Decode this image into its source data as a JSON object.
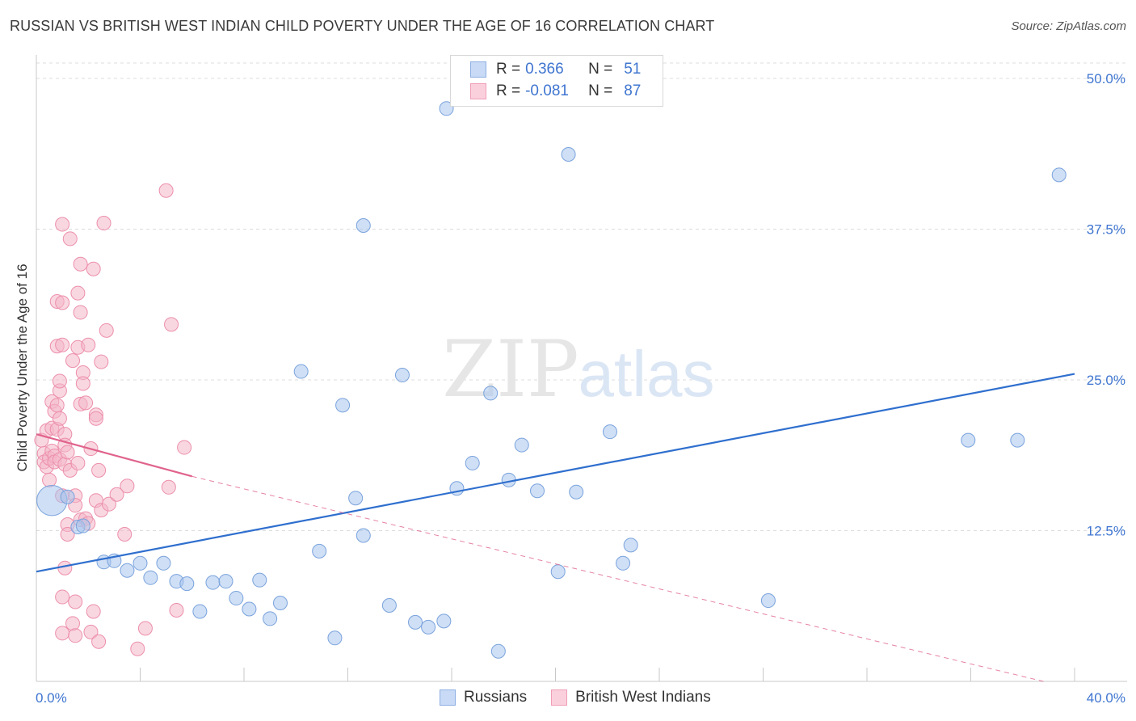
{
  "title": "RUSSIAN VS BRITISH WEST INDIAN CHILD POVERTY UNDER THE AGE OF 16 CORRELATION CHART",
  "source": "Source: ZipAtlas.com",
  "watermark": "ZIPatlas",
  "correlation": {
    "r_label": "R =",
    "n_label": "N =",
    "rows": [
      {
        "name": "Russians",
        "r": "0.366",
        "n": "51",
        "color": "#a8c4ec"
      },
      {
        "name": "British West Indians",
        "r": "-0.081",
        "n": "87",
        "color": "#f4b6c8"
      }
    ]
  },
  "colors": {
    "blue_fill": "#a8c4ec",
    "blue_stroke": "#7aa3dd",
    "blue_line": "#2f6fce",
    "pink_fill": "#f4b6c8",
    "pink_stroke": "#ec8fab",
    "pink_line": "#e0638c",
    "tick_text": "#3f75d0",
    "grid": "#dcdcdc"
  },
  "chart_data": {
    "type": "scatter",
    "title": "RUSSIAN VS BRITISH WEST INDIAN CHILD POVERTY UNDER THE AGE OF 16 CORRELATION CHART",
    "xlabel": "",
    "ylabel": "Child Poverty Under the Age of 16",
    "xlim": [
      0,
      40
    ],
    "ylim": [
      0,
      50
    ],
    "x_tick_labels": [
      "0.0%",
      "40.0%"
    ],
    "y_ticks": [
      12.5,
      25.0,
      37.5,
      50.0
    ],
    "y_tick_labels": [
      "12.5%",
      "25.0%",
      "37.5%",
      "50.0%"
    ],
    "grid": true,
    "legend_position": "bottom",
    "series": [
      {
        "name": "Russians",
        "color": "#a8c4ec",
        "trend": {
          "x": [
            0,
            40
          ],
          "y": [
            9.1,
            25.5
          ],
          "style": "solid"
        },
        "points": [
          [
            0.6,
            15.0,
            2.2
          ],
          [
            1.2,
            15.3,
            1
          ],
          [
            1.6,
            12.8,
            1
          ],
          [
            1.8,
            12.9,
            1
          ],
          [
            2.6,
            9.9,
            1
          ],
          [
            3.0,
            10.0,
            1
          ],
          [
            3.5,
            9.2,
            1
          ],
          [
            4.0,
            9.8,
            1
          ],
          [
            4.4,
            8.6,
            1
          ],
          [
            4.9,
            9.8,
            1
          ],
          [
            5.4,
            8.3,
            1
          ],
          [
            5.8,
            8.1,
            1
          ],
          [
            6.3,
            5.8,
            1
          ],
          [
            6.8,
            8.2,
            1
          ],
          [
            7.3,
            8.3,
            1
          ],
          [
            7.7,
            6.9,
            1
          ],
          [
            8.2,
            6.0,
            1
          ],
          [
            8.6,
            8.4,
            1
          ],
          [
            9.0,
            5.2,
            1
          ],
          [
            9.4,
            6.5,
            1
          ],
          [
            10.2,
            25.7,
            1
          ],
          [
            10.9,
            10.8,
            1
          ],
          [
            11.5,
            3.6,
            1
          ],
          [
            11.8,
            22.9,
            1
          ],
          [
            12.3,
            15.2,
            1
          ],
          [
            12.6,
            12.1,
            1
          ],
          [
            12.6,
            37.8,
            1
          ],
          [
            13.6,
            6.3,
            1
          ],
          [
            14.1,
            25.4,
            1
          ],
          [
            14.6,
            4.9,
            1
          ],
          [
            15.1,
            4.5,
            1
          ],
          [
            15.7,
            5.0,
            1
          ],
          [
            15.8,
            47.5,
            1
          ],
          [
            16.2,
            16.0,
            1
          ],
          [
            16.8,
            18.1,
            1
          ],
          [
            17.5,
            23.9,
            1
          ],
          [
            17.8,
            2.5,
            1
          ],
          [
            18.2,
            16.7,
            1
          ],
          [
            18.7,
            19.6,
            1
          ],
          [
            19.3,
            15.8,
            1
          ],
          [
            20.1,
            9.1,
            1
          ],
          [
            20.5,
            43.7,
            1
          ],
          [
            20.8,
            15.7,
            1
          ],
          [
            22.1,
            20.7,
            1
          ],
          [
            22.6,
            9.8,
            1
          ],
          [
            22.9,
            11.3,
            1
          ],
          [
            28.2,
            6.7,
            1
          ],
          [
            35.9,
            20.0,
            1
          ],
          [
            37.8,
            20.0,
            1
          ],
          [
            39.4,
            42.0,
            1
          ]
        ]
      },
      {
        "name": "British West Indians",
        "color": "#f4b6c8",
        "trend": {
          "x": [
            0,
            6.0
          ],
          "y": [
            20.5,
            17.0
          ],
          "style": "solid",
          "extended_x": [
            6.0,
            38.8
          ],
          "extended_y": [
            17.0,
            0.0
          ],
          "extended_style": "dashed"
        },
        "points": [
          [
            0.2,
            20.0,
            1
          ],
          [
            0.3,
            18.9,
            1
          ],
          [
            0.3,
            18.2,
            1
          ],
          [
            0.4,
            20.8,
            1
          ],
          [
            0.4,
            17.8,
            1
          ],
          [
            0.5,
            16.7,
            1
          ],
          [
            0.5,
            18.5,
            1
          ],
          [
            0.6,
            19.1,
            1
          ],
          [
            0.6,
            21.0,
            1
          ],
          [
            0.6,
            23.2,
            1
          ],
          [
            0.7,
            22.4,
            1
          ],
          [
            0.7,
            18.7,
            1
          ],
          [
            0.7,
            18.2,
            1
          ],
          [
            0.8,
            20.9,
            1
          ],
          [
            0.8,
            22.9,
            1
          ],
          [
            0.8,
            27.8,
            1
          ],
          [
            0.8,
            31.5,
            1
          ],
          [
            0.9,
            24.1,
            1
          ],
          [
            0.9,
            24.9,
            1
          ],
          [
            0.9,
            21.8,
            1
          ],
          [
            0.9,
            18.4,
            1
          ],
          [
            1.0,
            37.9,
            1
          ],
          [
            1.0,
            31.4,
            1
          ],
          [
            1.0,
            27.9,
            1
          ],
          [
            1.0,
            15.4,
            1
          ],
          [
            1.0,
            7.0,
            1
          ],
          [
            1.0,
            4.0,
            1
          ],
          [
            1.1,
            20.5,
            1
          ],
          [
            1.1,
            19.6,
            1
          ],
          [
            1.1,
            18.0,
            1
          ],
          [
            1.2,
            13.0,
            1
          ],
          [
            1.2,
            12.2,
            1
          ],
          [
            1.1,
            9.4,
            1
          ],
          [
            1.2,
            19.0,
            1
          ],
          [
            1.3,
            17.5,
            1
          ],
          [
            1.3,
            36.7,
            1
          ],
          [
            1.4,
            26.6,
            1
          ],
          [
            1.4,
            4.8,
            1
          ],
          [
            1.5,
            3.8,
            1
          ],
          [
            1.5,
            6.6,
            1
          ],
          [
            1.5,
            15.4,
            1
          ],
          [
            1.5,
            14.6,
            1
          ],
          [
            1.6,
            18.1,
            1
          ],
          [
            1.6,
            27.7,
            1
          ],
          [
            1.6,
            32.2,
            1
          ],
          [
            1.7,
            30.6,
            1
          ],
          [
            1.7,
            34.6,
            1
          ],
          [
            1.7,
            23.0,
            1
          ],
          [
            1.7,
            13.4,
            1
          ],
          [
            1.8,
            25.6,
            1
          ],
          [
            1.8,
            24.7,
            1
          ],
          [
            1.9,
            23.1,
            1
          ],
          [
            1.9,
            13.5,
            1
          ],
          [
            2.0,
            27.9,
            1
          ],
          [
            2.0,
            13.1,
            1
          ],
          [
            2.1,
            19.3,
            1
          ],
          [
            2.1,
            4.1,
            1
          ],
          [
            2.2,
            5.8,
            1
          ],
          [
            2.2,
            34.2,
            1
          ],
          [
            2.3,
            22.1,
            1
          ],
          [
            2.3,
            21.8,
            1
          ],
          [
            2.3,
            15.0,
            1
          ],
          [
            2.4,
            17.5,
            1
          ],
          [
            2.4,
            3.3,
            1
          ],
          [
            2.5,
            14.2,
            1
          ],
          [
            2.5,
            26.5,
            1
          ],
          [
            2.6,
            38.0,
            1
          ],
          [
            2.7,
            29.1,
            1
          ],
          [
            2.8,
            14.7,
            1
          ],
          [
            3.1,
            15.5,
            1
          ],
          [
            3.4,
            12.2,
            1
          ],
          [
            3.5,
            16.2,
            1
          ],
          [
            3.9,
            2.7,
            1
          ],
          [
            4.2,
            4.4,
            1
          ],
          [
            5.0,
            40.7,
            1
          ],
          [
            5.1,
            16.1,
            1
          ],
          [
            5.2,
            29.6,
            1
          ],
          [
            5.4,
            5.9,
            1
          ],
          [
            5.7,
            19.4,
            1
          ]
        ]
      }
    ]
  }
}
